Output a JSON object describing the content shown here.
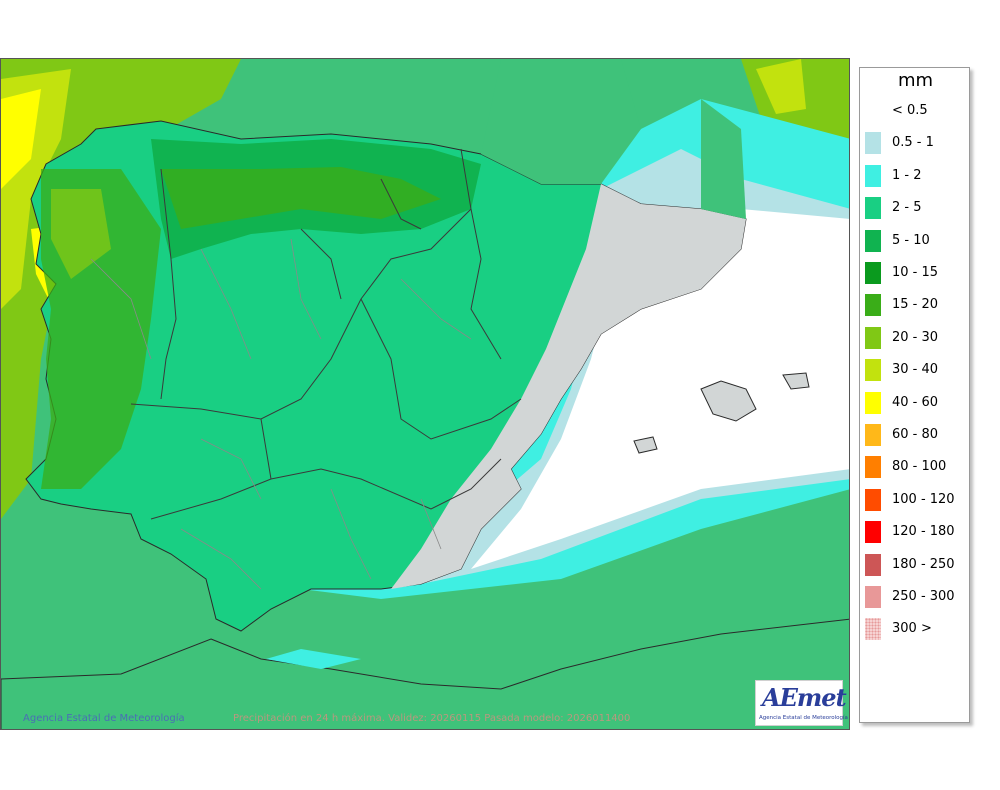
{
  "map": {
    "agency_credit": "Agencia Estatal de Meteorología",
    "validity_text": "Precipitación en 24 h máxima. Validez: 20260115 Pasada modelo: 2026011400",
    "logo_text": "AEmet",
    "logo_subtext": "Agencia Estatal de Meteorología"
  },
  "legend": {
    "unit": "mm",
    "items": [
      {
        "label": "< 0.5",
        "color": "#ffffff"
      },
      {
        "label": "0.5 - 1",
        "color": "#b4e2e6"
      },
      {
        "label": "1 - 2",
        "color": "#3fefe2"
      },
      {
        "label": "2 - 5",
        "color": "#19cf83"
      },
      {
        "label": "5 - 10",
        "color": "#10b350"
      },
      {
        "label": "10 - 15",
        "color": "#0a9a1e"
      },
      {
        "label": "15 - 20",
        "color": "#3aad18"
      },
      {
        "label": "20 - 30",
        "color": "#80c815"
      },
      {
        "label": "30 - 40",
        "color": "#c2e20e"
      },
      {
        "label": "40 - 60",
        "color": "#ffff00"
      },
      {
        "label": "60 - 80",
        "color": "#ffb819"
      },
      {
        "label": "80 - 100",
        "color": "#ff7f00"
      },
      {
        "label": "100 - 120",
        "color": "#ff4c00"
      },
      {
        "label": "120 - 180",
        "color": "#ff0000"
      },
      {
        "label": "180 - 250",
        "color": "#cd5656"
      },
      {
        "label": "250 - 300",
        "color": "#e89898"
      },
      {
        "label": "300 >",
        "color": "#f6d2d2"
      }
    ]
  }
}
